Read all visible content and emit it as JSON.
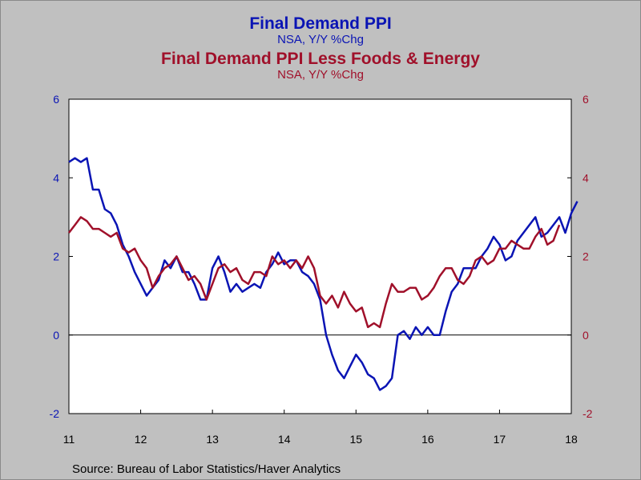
{
  "chart_data": {
    "type": "line",
    "title": "Final Demand PPI",
    "title_subtitle": "NSA, Y/Y %Chg",
    "title2": "Final Demand PPI Less Foods & Energy",
    "title2_subtitle": "NSA, Y/Y %Chg",
    "x_start": 2011.0,
    "x_step": 0.0833333,
    "xlim": [
      2011,
      2018
    ],
    "x_ticks": [
      2011,
      2012,
      2013,
      2014,
      2015,
      2016,
      2017,
      2018
    ],
    "x_tick_labels": [
      "11",
      "12",
      "13",
      "14",
      "15",
      "16",
      "17",
      "18"
    ],
    "ylim": [
      -2,
      6
    ],
    "y_ticks": [
      -2,
      0,
      2,
      4,
      6
    ],
    "y_tick_labels": [
      "-2",
      "0",
      "2",
      "4",
      "6"
    ],
    "grid": false,
    "zero_line": true,
    "colors": {
      "series1": "#0a14b4",
      "series2": "#a0102a",
      "plot_bg": "#ffffff",
      "page_bg": "#c0c0c0"
    },
    "series": [
      {
        "values": [
          4.4,
          4.5,
          4.4,
          4.5,
          3.7,
          3.7,
          3.2,
          3.1,
          2.8,
          2.3,
          2.0,
          1.6,
          1.3,
          1.0,
          1.2,
          1.4,
          1.9,
          1.7,
          2.0,
          1.6,
          1.6,
          1.3,
          0.9,
          0.9,
          1.7,
          2.0,
          1.6,
          1.1,
          1.3,
          1.1,
          1.2,
          1.3,
          1.2,
          1.6,
          1.8,
          2.1,
          1.8,
          1.9,
          1.9,
          1.6,
          1.5,
          1.3,
          0.9,
          0.0,
          -0.5,
          -0.9,
          -1.1,
          -0.8,
          -0.5,
          -0.7,
          -1.0,
          -1.1,
          -1.4,
          -1.3,
          -1.1,
          0.0,
          0.1,
          -0.1,
          0.2,
          0.0,
          0.2,
          0.0,
          0.0,
          0.6,
          1.1,
          1.3,
          1.7,
          1.7,
          1.7,
          2.0,
          2.2,
          2.5,
          2.3,
          1.9,
          2.0,
          2.4,
          2.6,
          2.8,
          3.0,
          2.5,
          2.6,
          2.8,
          3.0,
          2.6,
          3.1,
          3.4
        ],
        "color": "#0a14b4"
      },
      {
        "values": [
          2.6,
          2.8,
          3.0,
          2.9,
          2.7,
          2.7,
          2.6,
          2.5,
          2.6,
          2.2,
          2.1,
          2.2,
          1.9,
          1.7,
          1.2,
          1.5,
          1.7,
          1.8,
          2.0,
          1.7,
          1.4,
          1.5,
          1.3,
          0.9,
          1.3,
          1.7,
          1.8,
          1.6,
          1.7,
          1.4,
          1.3,
          1.6,
          1.6,
          1.5,
          2.0,
          1.8,
          1.9,
          1.7,
          1.9,
          1.7,
          2.0,
          1.7,
          1.0,
          0.8,
          1.0,
          0.7,
          1.1,
          0.8,
          0.6,
          0.7,
          0.2,
          0.3,
          0.2,
          0.8,
          1.3,
          1.1,
          1.1,
          1.2,
          1.2,
          0.9,
          1.0,
          1.2,
          1.5,
          1.7,
          1.7,
          1.4,
          1.3,
          1.5,
          1.9,
          2.0,
          1.8,
          1.9,
          2.2,
          2.2,
          2.4,
          2.3,
          2.2,
          2.2,
          2.5,
          2.7,
          2.3,
          2.4,
          2.8
        ],
        "color": "#a0102a"
      }
    ],
    "source": "Source:  Bureau of Labor Statistics/Haver Analytics"
  }
}
